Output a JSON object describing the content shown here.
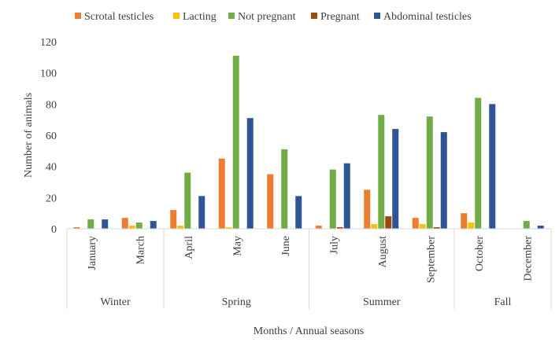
{
  "chart_data": {
    "type": "bar",
    "title": "",
    "xlabel": "Months / Annual seasons",
    "ylabel": "Number of animals",
    "ylim": [
      0,
      120
    ],
    "yticks": [
      0,
      20,
      40,
      60,
      80,
      100,
      120
    ],
    "grid": false,
    "legend_position": "top",
    "categories": [
      "January",
      "March",
      "April",
      "May",
      "June",
      "July",
      "August",
      "September",
      "October",
      "December"
    ],
    "groups": [
      {
        "name": "Winter",
        "span": 2
      },
      {
        "name": "Spring",
        "span": 3
      },
      {
        "name": "Summer",
        "span": 3
      },
      {
        "name": "Fall",
        "span": 2
      }
    ],
    "series": [
      {
        "name": "Scrotal testicles",
        "color": "#ED7D31",
        "values": [
          1,
          7,
          12,
          45,
          35,
          2,
          25,
          7,
          10,
          0
        ]
      },
      {
        "name": "Lacting",
        "color": "#FFC000",
        "values": [
          0,
          2,
          2,
          1,
          0,
          0,
          3,
          3,
          4,
          0
        ]
      },
      {
        "name": "Not pregnant",
        "color": "#70AD47",
        "values": [
          6,
          4,
          36,
          111,
          51,
          38,
          73,
          72,
          84,
          5
        ]
      },
      {
        "name": "Pregnant",
        "color": "#9E480E",
        "values": [
          0,
          0,
          0,
          0,
          0,
          1,
          8,
          1,
          0,
          0
        ]
      },
      {
        "name": "Abdominal testicles",
        "color": "#2F5597",
        "values": [
          6,
          5,
          21,
          71,
          21,
          42,
          64,
          62,
          80,
          2
        ]
      }
    ]
  }
}
